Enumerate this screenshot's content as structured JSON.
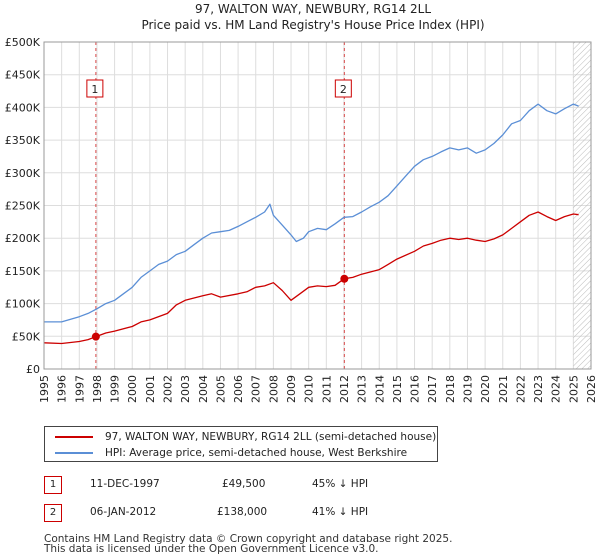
{
  "title": "97, WALTON WAY, NEWBURY, RG14 2LL",
  "subtitle": "Price paid vs. HM Land Registry's House Price Index (HPI)",
  "colors": {
    "price": "#cc0000",
    "hpi": "#5b8fd6",
    "grid": "#dddddd",
    "marker": "#cc0000"
  },
  "chart_data": {
    "type": "line",
    "title": "97, WALTON WAY, NEWBURY, RG14 2LL",
    "subtitle": "Price paid vs. HM Land Registry's House Price Index (HPI)",
    "xlim": [
      1995,
      2026
    ],
    "ylim": [
      0,
      500000
    ],
    "x_ticks": [
      1995,
      1996,
      1997,
      1998,
      1999,
      2000,
      2001,
      2002,
      2003,
      2004,
      2005,
      2006,
      2007,
      2008,
      2009,
      2010,
      2011,
      2012,
      2013,
      2014,
      2015,
      2016,
      2017,
      2018,
      2019,
      2020,
      2021,
      2022,
      2023,
      2024,
      2025,
      2026
    ],
    "y_ticks": [
      0,
      50000,
      100000,
      150000,
      200000,
      250000,
      300000,
      350000,
      400000,
      450000,
      500000
    ],
    "y_tick_labels": [
      "£0",
      "£50K",
      "£100K",
      "£150K",
      "£200K",
      "£250K",
      "£300K",
      "£350K",
      "£400K",
      "£450K",
      "£500K"
    ],
    "series": [
      {
        "name": "97, WALTON WAY, NEWBURY, RG14 2LL (semi-detached house)",
        "x": [
          1995.0,
          1996.0,
          1997.0,
          1997.5,
          1997.94,
          1998.5,
          1999.0,
          2000.0,
          2000.5,
          2001.0,
          2002.0,
          2002.5,
          2003.0,
          2004.0,
          2004.5,
          2005.0,
          2006.0,
          2006.5,
          2007.0,
          2007.5,
          2008.0,
          2008.5,
          2009.0,
          2009.5,
          2010.0,
          2010.5,
          2011.0,
          2011.5,
          2012.02,
          2012.5,
          2013.0,
          2014.0,
          2014.5,
          2015.0,
          2016.0,
          2016.5,
          2017.0,
          2017.5,
          2018.0,
          2018.5,
          2019.0,
          2019.5,
          2020.0,
          2020.5,
          2021.0,
          2021.5,
          2022.0,
          2022.5,
          2023.0,
          2023.5,
          2024.0,
          2024.5,
          2025.0,
          2025.3
        ],
        "values": [
          40000,
          39000,
          42000,
          45000,
          49500,
          55000,
          58000,
          65000,
          72000,
          75000,
          85000,
          98000,
          105000,
          112000,
          115000,
          110000,
          115000,
          118000,
          125000,
          127000,
          132000,
          120000,
          105000,
          115000,
          125000,
          127000,
          126000,
          128000,
          138000,
          140000,
          145000,
          152000,
          160000,
          168000,
          180000,
          188000,
          192000,
          197000,
          200000,
          198000,
          200000,
          197000,
          195000,
          199000,
          205000,
          215000,
          225000,
          235000,
          240000,
          233000,
          227000,
          233000,
          237000,
          236000
        ]
      },
      {
        "name": "HPI: Average price, semi-detached house, West Berkshire",
        "x": [
          1995.0,
          1996.0,
          1997.0,
          1997.5,
          1998.0,
          1998.5,
          1999.0,
          1999.5,
          2000.0,
          2000.5,
          2001.0,
          2001.5,
          2002.0,
          2002.5,
          2003.0,
          2003.5,
          2004.0,
          2004.5,
          2005.0,
          2005.5,
          2006.0,
          2006.5,
          2007.0,
          2007.5,
          2007.8,
          2008.0,
          2008.5,
          2009.0,
          2009.3,
          2009.7,
          2010.0,
          2010.5,
          2011.0,
          2011.5,
          2012.0,
          2012.5,
          2013.0,
          2013.5,
          2014.0,
          2014.5,
          2015.0,
          2015.5,
          2016.0,
          2016.5,
          2017.0,
          2017.5,
          2018.0,
          2018.5,
          2019.0,
          2019.5,
          2020.0,
          2020.5,
          2021.0,
          2021.5,
          2022.0,
          2022.5,
          2023.0,
          2023.5,
          2024.0,
          2024.5,
          2025.0,
          2025.3
        ],
        "values": [
          72000,
          72000,
          80000,
          85000,
          92000,
          100000,
          105000,
          115000,
          125000,
          140000,
          150000,
          160000,
          165000,
          175000,
          180000,
          190000,
          200000,
          208000,
          210000,
          212000,
          218000,
          225000,
          232000,
          240000,
          252000,
          235000,
          220000,
          205000,
          195000,
          200000,
          210000,
          215000,
          213000,
          222000,
          232000,
          233000,
          240000,
          248000,
          255000,
          265000,
          280000,
          295000,
          310000,
          320000,
          325000,
          332000,
          338000,
          335000,
          338000,
          330000,
          335000,
          345000,
          358000,
          375000,
          380000,
          395000,
          405000,
          395000,
          390000,
          398000,
          405000,
          402000
        ]
      }
    ],
    "annotations": [
      {
        "label": "1",
        "x": 1997.94,
        "value": 49500
      },
      {
        "label": "2",
        "x": 2012.02,
        "value": 138000
      }
    ]
  },
  "legend": {
    "price_label": "97, WALTON WAY, NEWBURY, RG14 2LL (semi-detached house)",
    "hpi_label": "HPI: Average price, semi-detached house, West Berkshire"
  },
  "transactions": [
    {
      "num": "1",
      "date": "11-DEC-1997",
      "price": "£49,500",
      "hpi": "45% ↓ HPI"
    },
    {
      "num": "2",
      "date": "06-JAN-2012",
      "price": "£138,000",
      "hpi": "41% ↓ HPI"
    }
  ],
  "footer": {
    "line1": "Contains HM Land Registry data © Crown copyright and database right 2025.",
    "line2": "This data is licensed under the Open Government Licence v3.0."
  }
}
